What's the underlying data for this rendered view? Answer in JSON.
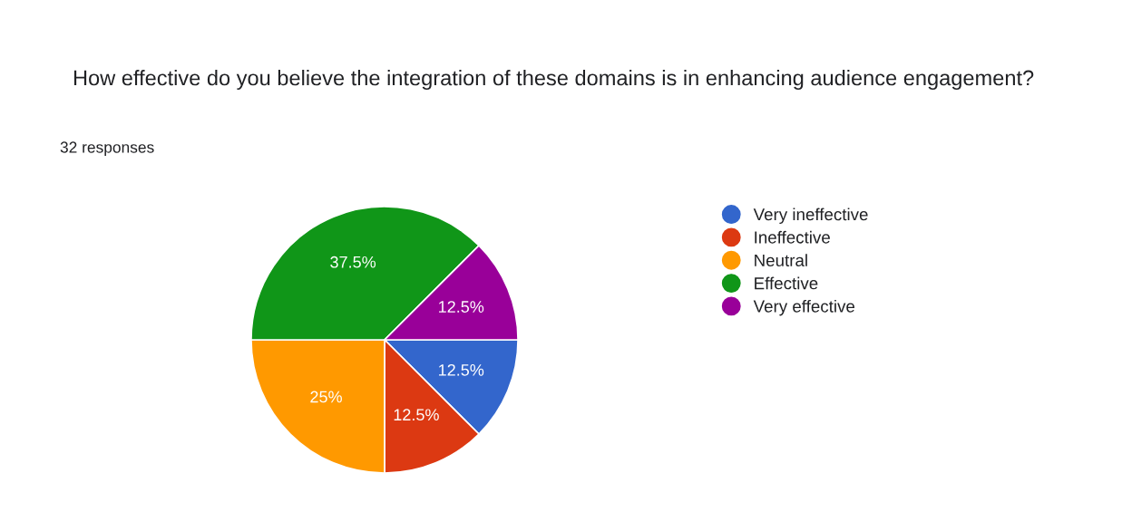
{
  "chart_data": {
    "type": "pie",
    "title": "How effective do you believe the integration of these domains is in enhancing audience engagement?",
    "subtitle": "32 responses",
    "categories": [
      "Very ineffective",
      "Ineffective",
      "Neutral",
      "Effective",
      "Very effective"
    ],
    "values": [
      12.5,
      12.5,
      25,
      37.5,
      12.5
    ],
    "colors": [
      "#3366cc",
      "#dc3912",
      "#ff9900",
      "#109618",
      "#990099"
    ],
    "value_labels": [
      "12.5%",
      "12.5%",
      "25%",
      "37.5%",
      "12.5%"
    ],
    "legend": "right"
  }
}
